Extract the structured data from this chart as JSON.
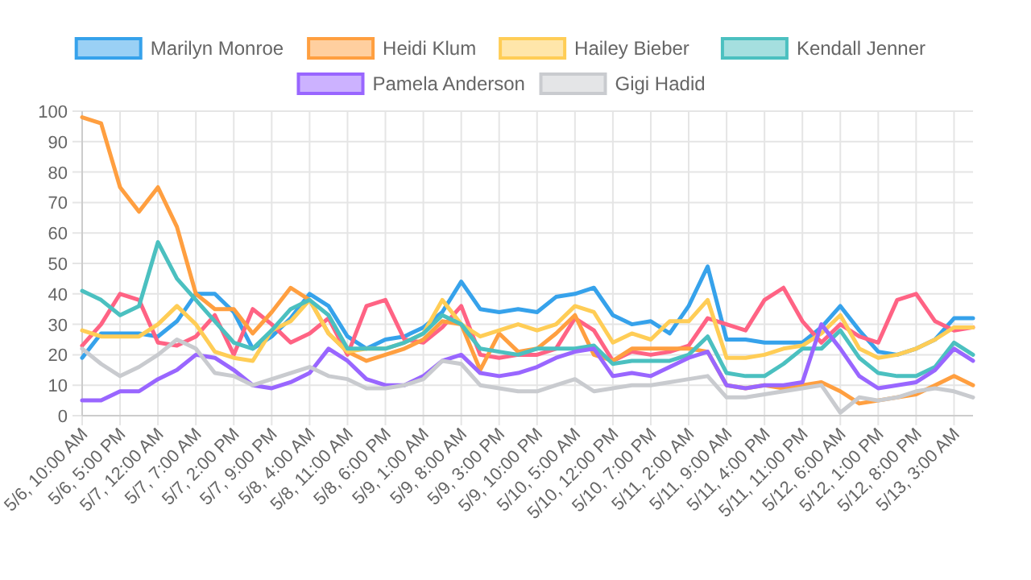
{
  "chart_data": {
    "type": "line",
    "legend": "top",
    "grid": true,
    "categories": [
      "5/6, 10:00 AM",
      null,
      "5/6, 5:00 PM",
      null,
      "5/7, 12:00 AM",
      null,
      "5/7, 7:00 AM",
      null,
      "5/7, 2:00 PM",
      null,
      "5/7, 9:00 PM",
      null,
      "5/8, 4:00 AM",
      null,
      "5/8, 11:00 AM",
      null,
      "5/8, 6:00 PM",
      null,
      "5/9, 1:00 AM",
      null,
      "5/9, 8:00 AM",
      null,
      "5/9, 3:00 PM",
      null,
      "5/9, 10:00 PM",
      null,
      "5/10, 5:00 AM",
      null,
      "5/10, 12:00 PM",
      null,
      "5/10, 7:00 PM",
      null,
      "5/11, 2:00 AM",
      null,
      "5/11, 9:00 AM",
      null,
      "5/11, 4:00 PM",
      null,
      "5/11, 11:00 PM",
      null,
      "5/12, 6:00 AM",
      null,
      "5/12, 1:00 PM",
      null,
      "5/12, 8:00 PM",
      null,
      "5/13, 3:00 AM",
      null
    ],
    "ylim": [
      0,
      100
    ],
    "yticks": [
      0,
      10,
      20,
      30,
      40,
      50,
      60,
      70,
      80,
      90,
      100
    ],
    "series": [
      {
        "name": "Marilyn Monroe",
        "color": "#36a2eb",
        "values": [
          19,
          27,
          27,
          27,
          26,
          31,
          40,
          40,
          34,
          22,
          26,
          32,
          40,
          36,
          26,
          22,
          25,
          26,
          29,
          34,
          44,
          35,
          34,
          35,
          34,
          39,
          40,
          42,
          33,
          30,
          31,
          27,
          36,
          49,
          25,
          25,
          24,
          24,
          24,
          29,
          36,
          28,
          21,
          20,
          22,
          25,
          32,
          32
        ]
      },
      {
        "color": "#ff6384",
        "values": [
          23,
          30,
          40,
          38,
          24,
          23,
          26,
          33,
          20,
          35,
          30,
          24,
          27,
          32,
          20,
          36,
          38,
          25,
          24,
          29,
          36,
          20,
          19,
          20,
          20,
          22,
          32,
          28,
          18,
          21,
          20,
          21,
          23,
          32,
          30,
          28,
          38,
          42,
          31,
          24,
          30,
          26,
          24,
          38,
          40,
          31,
          28,
          29
        ]
      },
      {
        "name": "Heidi Klum",
        "color": "#ff9f40",
        "values": [
          98,
          96,
          75,
          67,
          75,
          62,
          40,
          35,
          35,
          27,
          34,
          42,
          38,
          27,
          21,
          18,
          20,
          22,
          25,
          31,
          30,
          15,
          27,
          21,
          22,
          27,
          33,
          20,
          18,
          22,
          22,
          22,
          22,
          21,
          10,
          9,
          10,
          9,
          10,
          11,
          8,
          4,
          5,
          6,
          7,
          10,
          13,
          10
        ]
      },
      {
        "name": "Hailey Bieber",
        "color": "#ffcd56",
        "values": [
          28,
          26,
          26,
          26,
          30,
          36,
          30,
          21,
          19,
          18,
          28,
          31,
          38,
          27,
          21,
          22,
          22,
          24,
          27,
          38,
          30,
          26,
          28,
          30,
          28,
          30,
          36,
          34,
          24,
          27,
          25,
          31,
          31,
          38,
          19,
          19,
          20,
          22,
          23,
          27,
          33,
          22,
          19,
          20,
          22,
          25,
          29,
          29
        ]
      },
      {
        "name": "Kendall Jenner",
        "color": "#4bc0c0",
        "values": [
          41,
          38,
          33,
          36,
          57,
          45,
          38,
          31,
          24,
          22,
          28,
          35,
          38,
          33,
          22,
          22,
          22,
          24,
          27,
          33,
          30,
          22,
          21,
          20,
          22,
          22,
          22,
          23,
          17,
          18,
          18,
          18,
          20,
          26,
          14,
          13,
          13,
          17,
          22,
          22,
          28,
          19,
          14,
          13,
          13,
          16,
          24,
          20
        ]
      },
      {
        "name": "Pamela Anderson",
        "color": "#9966ff",
        "values": [
          5,
          5,
          8,
          8,
          12,
          15,
          20,
          19,
          15,
          10,
          9,
          11,
          14,
          22,
          18,
          12,
          10,
          10,
          13,
          18,
          20,
          14,
          13,
          14,
          16,
          19,
          21,
          22,
          13,
          14,
          13,
          16,
          19,
          21,
          10,
          9,
          10,
          10,
          11,
          30,
          22,
          13,
          9,
          10,
          11,
          15,
          22,
          18
        ]
      },
      {
        "name": "Gigi Hadid",
        "color": "#c9cbcf",
        "values": [
          22,
          17,
          13,
          16,
          20,
          25,
          22,
          14,
          13,
          10,
          12,
          14,
          16,
          13,
          12,
          9,
          9,
          10,
          12,
          18,
          17,
          10,
          9,
          8,
          8,
          10,
          12,
          8,
          9,
          10,
          10,
          11,
          12,
          13,
          6,
          6,
          7,
          8,
          9,
          10,
          1,
          6,
          5,
          6,
          8,
          9,
          8,
          6
        ]
      }
    ]
  }
}
